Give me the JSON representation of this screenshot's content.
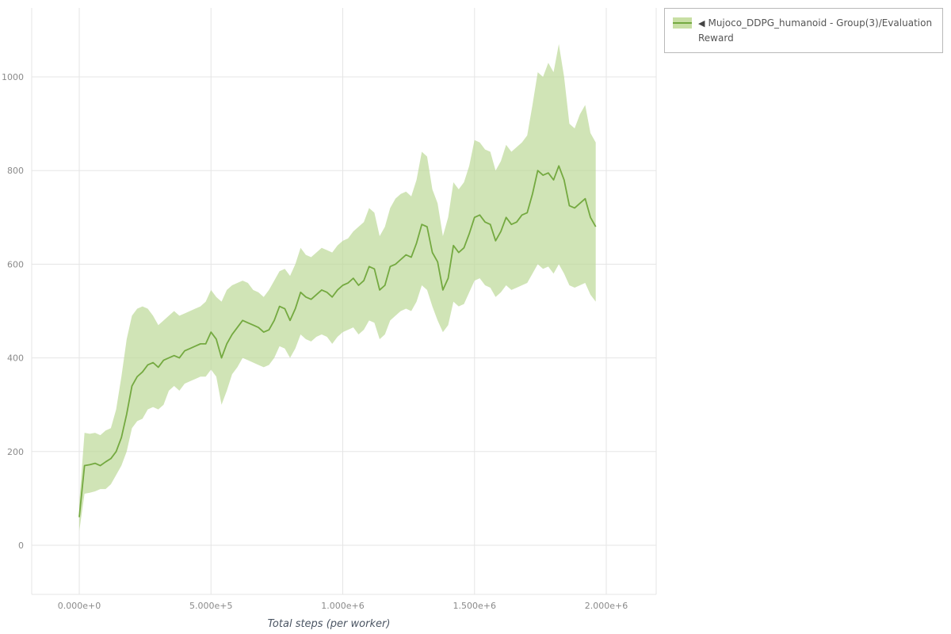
{
  "page": {
    "background": "#ffffff"
  },
  "legend": {
    "collapse_icon": "◀",
    "label": "Mujoco_DDPG_humanoid - Group(3)/Evaluation Reward",
    "swatch_band_color": "#c8dfa4",
    "swatch_line_color": "#74a940"
  },
  "chart_data": {
    "type": "line",
    "title": "",
    "xlabel": "Total steps (per worker)",
    "ylabel": "",
    "grid": true,
    "legend_position": "top-right",
    "x_domain": [
      0,
      2000000
    ],
    "y_domain": [
      0,
      1150
    ],
    "xticks": [
      0,
      500000,
      1000000,
      1500000,
      2000000
    ],
    "xtick_labels": [
      "0.000e+0",
      "5.000e+5",
      "1.000e+6",
      "1.500e+6",
      "2.000e+6"
    ],
    "yticks": [
      0,
      200,
      400,
      600,
      800,
      1000
    ],
    "ytick_labels": [
      "0",
      "200",
      "400",
      "600",
      "800",
      "1000"
    ],
    "colors": {
      "line": "#74a940",
      "band": "#bcd897",
      "band_opacity": 0.7,
      "grid": "#e5e5e5",
      "tick_text": "#8a8a8a",
      "axis_label": "#4b5563"
    },
    "series": [
      {
        "name": "Mujoco_DDPG_humanoid - Group(3)/Evaluation Reward",
        "x": [
          0,
          20000,
          40000,
          60000,
          80000,
          100000,
          120000,
          140000,
          160000,
          180000,
          200000,
          220000,
          240000,
          260000,
          280000,
          300000,
          320000,
          340000,
          360000,
          380000,
          400000,
          420000,
          440000,
          460000,
          480000,
          500000,
          520000,
          540000,
          560000,
          580000,
          600000,
          620000,
          640000,
          660000,
          680000,
          700000,
          720000,
          740000,
          760000,
          780000,
          800000,
          820000,
          840000,
          860000,
          880000,
          900000,
          920000,
          940000,
          960000,
          980000,
          1000000,
          1020000,
          1040000,
          1060000,
          1080000,
          1100000,
          1120000,
          1140000,
          1160000,
          1180000,
          1200000,
          1220000,
          1240000,
          1260000,
          1280000,
          1300000,
          1320000,
          1340000,
          1360000,
          1380000,
          1400000,
          1420000,
          1440000,
          1460000,
          1480000,
          1500000,
          1520000,
          1540000,
          1560000,
          1580000,
          1600000,
          1620000,
          1640000,
          1660000,
          1680000,
          1700000,
          1720000,
          1740000,
          1760000,
          1780000,
          1800000,
          1820000,
          1840000,
          1860000,
          1880000,
          1900000,
          1920000,
          1940000,
          1960000
        ],
        "mean": [
          60,
          170,
          172,
          175,
          170,
          178,
          185,
          200,
          230,
          280,
          340,
          360,
          370,
          385,
          390,
          380,
          395,
          400,
          405,
          400,
          415,
          420,
          425,
          430,
          430,
          455,
          440,
          400,
          430,
          450,
          465,
          480,
          475,
          470,
          465,
          455,
          460,
          480,
          510,
          505,
          480,
          505,
          540,
          530,
          525,
          535,
          545,
          540,
          530,
          545,
          555,
          560,
          570,
          555,
          565,
          595,
          590,
          545,
          555,
          595,
          600,
          610,
          620,
          615,
          645,
          685,
          680,
          625,
          605,
          545,
          570,
          640,
          625,
          635,
          665,
          700,
          705,
          690,
          685,
          650,
          670,
          700,
          685,
          690,
          705,
          710,
          750,
          800,
          790,
          795,
          780,
          810,
          780,
          725,
          720,
          730,
          740,
          700,
          680
        ],
        "upper": [
          90,
          240,
          238,
          240,
          235,
          245,
          250,
          290,
          360,
          440,
          490,
          505,
          510,
          505,
          490,
          470,
          480,
          490,
          500,
          490,
          495,
          500,
          505,
          510,
          520,
          545,
          530,
          520,
          545,
          555,
          560,
          565,
          560,
          545,
          540,
          530,
          545,
          565,
          585,
          590,
          575,
          600,
          635,
          620,
          615,
          625,
          635,
          630,
          625,
          640,
          650,
          655,
          670,
          680,
          690,
          720,
          710,
          660,
          680,
          720,
          740,
          750,
          755,
          745,
          780,
          840,
          830,
          760,
          730,
          660,
          700,
          775,
          760,
          775,
          810,
          865,
          860,
          845,
          840,
          800,
          820,
          855,
          840,
          850,
          860,
          875,
          940,
          1010,
          1000,
          1030,
          1010,
          1070,
          1000,
          900,
          890,
          920,
          940,
          880,
          860
        ],
        "lower": [
          30,
          110,
          112,
          115,
          120,
          120,
          130,
          150,
          170,
          200,
          250,
          265,
          270,
          290,
          295,
          290,
          300,
          330,
          340,
          330,
          345,
          350,
          355,
          360,
          360,
          375,
          360,
          300,
          330,
          365,
          380,
          400,
          395,
          390,
          385,
          380,
          385,
          400,
          425,
          420,
          400,
          420,
          450,
          440,
          435,
          445,
          450,
          445,
          430,
          445,
          455,
          460,
          465,
          450,
          460,
          480,
          475,
          440,
          450,
          480,
          490,
          500,
          505,
          500,
          520,
          555,
          545,
          510,
          480,
          455,
          470,
          520,
          510,
          515,
          540,
          565,
          570,
          555,
          550,
          530,
          540,
          555,
          545,
          550,
          555,
          560,
          580,
          600,
          590,
          595,
          580,
          600,
          580,
          555,
          550,
          555,
          560,
          535,
          520
        ]
      }
    ]
  }
}
